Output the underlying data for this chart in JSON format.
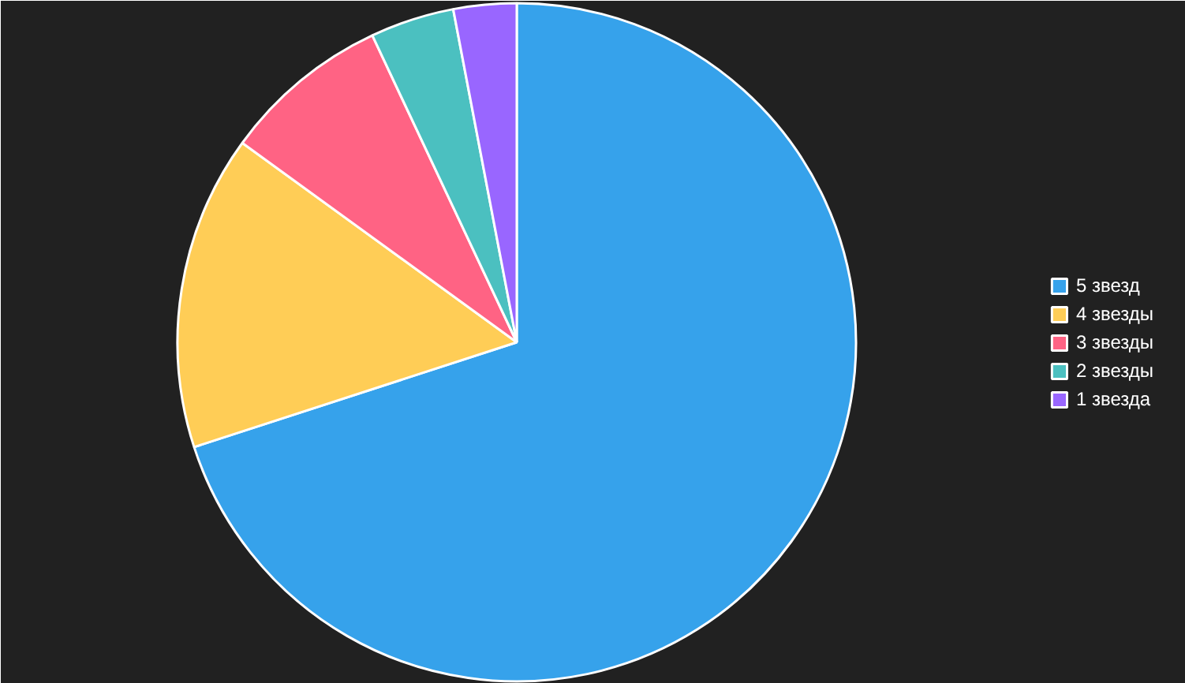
{
  "chart_data": {
    "type": "pie",
    "categories": [
      "5 звезд",
      "4 звезды",
      "3 звезды",
      "2 звезды",
      "1 звезда"
    ],
    "values": [
      70,
      15,
      8,
      4,
      3
    ],
    "colors": [
      "#36a2eb",
      "#ffcd56",
      "#ff6384",
      "#4bc0c0",
      "#9966ff"
    ],
    "legend": "right"
  }
}
